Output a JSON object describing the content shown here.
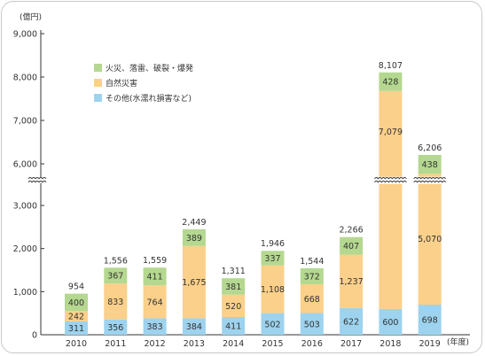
{
  "chart_data": {
    "type": "bar",
    "stacked": true,
    "y_unit": "(億円)",
    "x_unit": "(年度)",
    "categories": [
      "2010",
      "2011",
      "2012",
      "2013",
      "2014",
      "2015",
      "2016",
      "2017",
      "2018",
      "2019"
    ],
    "series": [
      {
        "name": "その他(水濡れ損害など)",
        "color": "#9dd3ee",
        "values": [
          311,
          356,
          383,
          384,
          411,
          502,
          503,
          622,
          600,
          698
        ]
      },
      {
        "name": "自然災害",
        "color": "#fbd08a",
        "values": [
          242,
          833,
          764,
          1675,
          520,
          1108,
          668,
          1237,
          7079,
          5070
        ]
      },
      {
        "name": "火災、落雷、破裂・爆発",
        "color": "#b4d88f",
        "values": [
          400,
          367,
          411,
          389,
          381,
          337,
          372,
          407,
          428,
          438
        ]
      }
    ],
    "totals": [
      "954",
      "1,556",
      "1,559",
      "2,449",
      "1,311",
      "1,946",
      "1,544",
      "2,266",
      "8,107",
      "6,206"
    ],
    "segment_labels": [
      [
        "311",
        "356",
        "383",
        "384",
        "411",
        "502",
        "503",
        "622",
        "600",
        "698"
      ],
      [
        "242",
        "833",
        "764",
        "1,675",
        "520",
        "1,108",
        "668",
        "1,237",
        "7,079",
        "5,070"
      ],
      [
        "400",
        "367",
        "411",
        "389",
        "381",
        "337",
        "372",
        "407",
        "428",
        "438"
      ]
    ],
    "y_ticks": [
      {
        "value": 0,
        "label": "0"
      },
      {
        "value": 1000,
        "label": "1,000"
      },
      {
        "value": 2000,
        "label": "2,000"
      },
      {
        "value": 3000,
        "label": "3,000"
      },
      {
        "value": 6000,
        "label": "6,000"
      },
      {
        "value": 7000,
        "label": "7,000"
      },
      {
        "value": 8000,
        "label": "8,000"
      },
      {
        "value": 9000,
        "label": "9,000"
      }
    ],
    "axis_break": [
      3500,
      5700
    ],
    "ylim": [
      0,
      9000
    ],
    "grid": false,
    "legend_position": "top-left",
    "legend_order": [
      2,
      1,
      0
    ]
  }
}
